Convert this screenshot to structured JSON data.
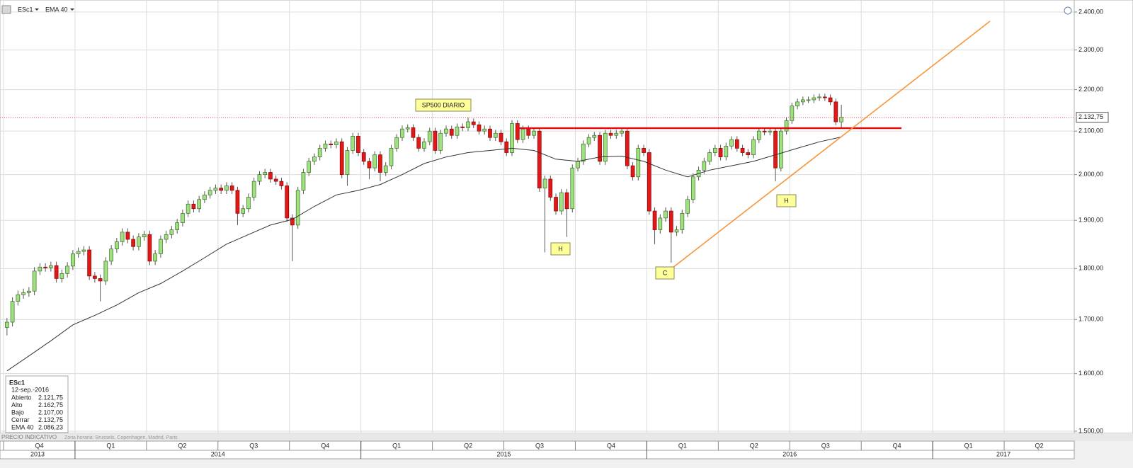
{
  "chart_data": {
    "type": "candlestick",
    "symbol": "ESc1",
    "title": "SP500 DIARIO",
    "annotations": [
      "H",
      "C",
      "H"
    ],
    "up_color": "#9fe07f",
    "down_color": "#e01818",
    "ylog": true,
    "grid": true,
    "xlim": [
      2013.7376,
      2017.495
    ],
    "ylim": [
      1496.4,
      2432.6
    ],
    "yticks": [
      {
        "value": 1500,
        "label": "1.500,00"
      },
      {
        "value": 1600,
        "label": "1.600,00"
      },
      {
        "value": 1700,
        "label": "1.700,00"
      },
      {
        "value": 1800,
        "label": "1.800,00"
      },
      {
        "value": 1900,
        "label": "1.900,00"
      },
      {
        "value": 2000,
        "label": "2.000,00"
      },
      {
        "value": 2100,
        "label": "2.100,00"
      },
      {
        "value": 2200,
        "label": "2.200,00"
      },
      {
        "value": 2300,
        "label": "2.300,00"
      },
      {
        "value": 2400,
        "label": "2.400,00"
      }
    ],
    "quarter_ticks": [
      {
        "value": 2013.75,
        "label": "Q4"
      },
      {
        "value": 2014,
        "label": "Q1"
      },
      {
        "value": 2014.25,
        "label": "Q2"
      },
      {
        "value": 2014.5,
        "label": "Q3"
      },
      {
        "value": 2014.75,
        "label": "Q4"
      },
      {
        "value": 2015,
        "label": "Q1"
      },
      {
        "value": 2015.25,
        "label": "Q2"
      },
      {
        "value": 2015.5,
        "label": "Q3"
      },
      {
        "value": 2015.75,
        "label": "Q4"
      },
      {
        "value": 2016,
        "label": "Q1"
      },
      {
        "value": 2016.25,
        "label": "Q2"
      },
      {
        "value": 2016.5,
        "label": "Q3"
      },
      {
        "value": 2016.75,
        "label": "Q4"
      },
      {
        "value": 2017,
        "label": "Q1"
      },
      {
        "value": 2017.25,
        "label": "Q2"
      }
    ],
    "year_ticks": [
      2013,
      2014,
      2015,
      2016,
      2017
    ],
    "x": [
      2013.762,
      2013.7812,
      2013.8004,
      2013.8196,
      2013.8388,
      2013.858,
      2013.8772,
      2013.8964,
      2013.9156,
      2013.9348,
      2013.954,
      2013.9732,
      2013.9924,
      2014.0116,
      2014.0308,
      2014.05,
      2014.0692,
      2014.0884,
      2014.1076,
      2014.1268,
      2014.146,
      2014.1652,
      2014.1844,
      2014.2036,
      2014.2228,
      2014.242,
      2014.2612,
      2014.2804,
      2014.2996,
      2014.3188,
      2014.338,
      2014.3572,
      2014.3764,
      2014.3956,
      2014.4148,
      2014.434,
      2014.4532,
      2014.4724,
      2014.4916,
      2014.5108,
      2014.53,
      2014.5492,
      2014.5684,
      2014.5876,
      2014.6068,
      2014.626,
      2014.6452,
      2014.6644,
      2014.6836,
      2014.7028,
      2014.722,
      2014.7412,
      2014.7604,
      2014.7796,
      2014.7988,
      2014.818,
      2014.8372,
      2014.8564,
      2014.8756,
      2014.8948,
      2014.914,
      2014.9332,
      2014.9524,
      2014.9716,
      2014.9908,
      2015.01,
      2015.0292,
      2015.0484,
      2015.0676,
      2015.0868,
      2015.106,
      2015.1252,
      2015.1444,
      2015.1636,
      2015.1828,
      2015.202,
      2015.2212,
      2015.2404,
      2015.2596,
      2015.2788,
      2015.298,
      2015.3172,
      2015.3364,
      2015.3556,
      2015.3748,
      2015.394,
      2015.4132,
      2015.4324,
      2015.4516,
      2015.4708,
      2015.49,
      2015.5092,
      2015.5284,
      2015.5476,
      2015.5668,
      2015.586,
      2015.6052,
      2015.6244,
      2015.6436,
      2015.6628,
      2015.682,
      2015.7012,
      2015.7204,
      2015.7396,
      2015.7588,
      2015.778,
      2015.7972,
      2015.8164,
      2015.8356,
      2015.8548,
      2015.874,
      2015.8932,
      2015.9124,
      2015.9316,
      2015.9508,
      2015.97,
      2015.9892,
      2016.0084,
      2016.0276,
      2016.0468,
      2016.066,
      2016.0852,
      2016.1044,
      2016.1236,
      2016.1428,
      2016.162,
      2016.1812,
      2016.2004,
      2016.2196,
      2016.2388,
      2016.258,
      2016.2772,
      2016.2964,
      2016.3156,
      2016.3348,
      2016.354,
      2016.3732,
      2016.3924,
      2016.4116,
      2016.4308,
      2016.45,
      2016.4692,
      2016.4884,
      2016.5076,
      2016.5268,
      2016.546,
      2016.5652,
      2016.5844,
      2016.6036,
      2016.6228,
      2016.642,
      2016.6612,
      2016.6804
    ],
    "open": [
      1685,
      1695,
      1735,
      1748,
      1752,
      1755,
      1795,
      1803,
      1802,
      1806,
      1780,
      1790,
      1805,
      1830,
      1835,
      1838,
      1785,
      1780,
      1775,
      1815,
      1840,
      1855,
      1875,
      1860,
      1845,
      1865,
      1870,
      1815,
      1830,
      1860,
      1870,
      1880,
      1895,
      1915,
      1935,
      1925,
      1945,
      1955,
      1965,
      1970,
      1965,
      1975,
      1965,
      1915,
      1925,
      1950,
      1985,
      2000,
      2005,
      1990,
      1985,
      1975,
      1905,
      1890,
      1965,
      2005,
      2030,
      2040,
      2060,
      2070,
      2068,
      2075,
      2000,
      2055,
      2088,
      2050,
      2030,
      2015,
      2045,
      2005,
      2020,
      2060,
      2085,
      2105,
      2108,
      2085,
      2060,
      2075,
      2100,
      2055,
      2095,
      2105,
      2090,
      2110,
      2108,
      2122,
      2115,
      2100,
      2105,
      2085,
      2095,
      2075,
      2050,
      2118,
      2080,
      2105,
      2090,
      2100,
      1970,
      1990,
      1950,
      1920,
      1960,
      1925,
      2015,
      2030,
      2070,
      2085,
      2090,
      2030,
      2095,
      2090,
      2095,
      2100,
      2020,
      1995,
      2060,
      2050,
      1920,
      1880,
      1905,
      1920,
      1875,
      1880,
      1915,
      1945,
      1995,
      2010,
      2030,
      2050,
      2060,
      2040,
      2065,
      2080,
      2060,
      2050,
      2045,
      2080,
      2100,
      2098,
      2100,
      2015,
      2100,
      2125,
      2160,
      2170,
      2175,
      2175,
      2180,
      2182,
      2180,
      2170,
      2121.75
    ],
    "high": [
      1703,
      1743,
      1756,
      1760,
      1763,
      1803,
      1811,
      1811,
      1814,
      1814,
      1798,
      1813,
      1838,
      1843,
      1846,
      1846,
      1793,
      1788,
      1823,
      1848,
      1863,
      1883,
      1883,
      1868,
      1873,
      1878,
      1878,
      1838,
      1868,
      1878,
      1888,
      1903,
      1923,
      1943,
      1943,
      1953,
      1963,
      1973,
      1978,
      1978,
      1983,
      1983,
      1973,
      1933,
      1958,
      1993,
      2008,
      2013,
      2013,
      1998,
      1993,
      1983,
      1913,
      1973,
      2013,
      2038,
      2048,
      2068,
      2078,
      2078,
      2083,
      2083,
      2063,
      2096,
      2096,
      2058,
      2038,
      2053,
      2053,
      2028,
      2068,
      2093,
      2113,
      2116,
      2116,
      2093,
      2083,
      2108,
      2108,
      2103,
      2113,
      2113,
      2118,
      2118,
      2132,
      2130,
      2123,
      2113,
      2113,
      2103,
      2103,
      2083,
      2126,
      2126,
      2113,
      2113,
      2108,
      2108,
      1998,
      1998,
      1958,
      1968,
      1968,
      2023,
      2038,
      2078,
      2093,
      2098,
      2098,
      2103,
      2103,
      2103,
      2108,
      2108,
      2028,
      2068,
      2068,
      2058,
      1928,
      1913,
      1928,
      1928,
      1888,
      1923,
      1953,
      2003,
      2018,
      2038,
      2058,
      2068,
      2068,
      2073,
      2088,
      2088,
      2068,
      2058,
      2088,
      2108,
      2108,
      2108,
      2108,
      2108,
      2133,
      2168,
      2178,
      2183,
      2183,
      2188,
      2190,
      2190,
      2188,
      2178,
      2162.75
    ],
    "low": [
      1670,
      1687,
      1727,
      1740,
      1744,
      1747,
      1787,
      1794,
      1794,
      1772,
      1772,
      1782,
      1797,
      1822,
      1827,
      1777,
      1772,
      1735,
      1767,
      1807,
      1832,
      1847,
      1852,
      1837,
      1837,
      1857,
      1807,
      1807,
      1822,
      1852,
      1862,
      1872,
      1887,
      1907,
      1917,
      1917,
      1937,
      1947,
      1957,
      1957,
      1957,
      1957,
      1890,
      1907,
      1917,
      1942,
      1977,
      1992,
      1982,
      1977,
      1967,
      1897,
      1815,
      1882,
      1957,
      1997,
      2022,
      2032,
      2052,
      2060,
      2060,
      1992,
      1975,
      2047,
      2042,
      2022,
      1990,
      2007,
      1985,
      1997,
      2012,
      2052,
      2077,
      2097,
      2077,
      2052,
      2052,
      2067,
      2047,
      2047,
      2087,
      2082,
      2082,
      2100,
      2100,
      2107,
      2092,
      2092,
      2077,
      2077,
      2067,
      2042,
      2042,
      2072,
      2072,
      2082,
      2082,
      1962,
      1833,
      1942,
      1912,
      1912,
      1865,
      1917,
      2007,
      2022,
      2062,
      2077,
      2022,
      2022,
      2082,
      2082,
      2087,
      2012,
      1987,
      1987,
      2042,
      1912,
      1850,
      1872,
      1897,
      1812,
      1867,
      1872,
      1907,
      1937,
      1987,
      2002,
      2022,
      2042,
      2032,
      2032,
      2057,
      2052,
      2042,
      2037,
      2037,
      2072,
      2090,
      2090,
      1985,
      2007,
      2092,
      2117,
      2152,
      2162,
      2167,
      2167,
      2172,
      2172,
      2162,
      2114,
      2107
    ],
    "close": [
      1695,
      1735,
      1748,
      1752,
      1755,
      1795,
      1803,
      1802,
      1806,
      1780,
      1790,
      1805,
      1830,
      1835,
      1838,
      1785,
      1780,
      1775,
      1815,
      1840,
      1855,
      1875,
      1860,
      1845,
      1865,
      1870,
      1815,
      1830,
      1860,
      1870,
      1880,
      1895,
      1915,
      1935,
      1925,
      1945,
      1955,
      1965,
      1970,
      1965,
      1975,
      1965,
      1915,
      1925,
      1950,
      1985,
      2000,
      2005,
      1990,
      1985,
      1975,
      1905,
      1890,
      1965,
      2005,
      2030,
      2040,
      2060,
      2070,
      2068,
      2075,
      2000,
      2055,
      2088,
      2050,
      2030,
      2015,
      2045,
      2005,
      2020,
      2060,
      2085,
      2105,
      2108,
      2085,
      2060,
      2075,
      2100,
      2055,
      2095,
      2105,
      2090,
      2110,
      2108,
      2122,
      2115,
      2100,
      2105,
      2085,
      2095,
      2075,
      2050,
      2118,
      2080,
      2105,
      2090,
      2100,
      1970,
      1990,
      1950,
      1920,
      1960,
      1925,
      2015,
      2030,
      2070,
      2085,
      2090,
      2030,
      2095,
      2090,
      2095,
      2100,
      2020,
      1995,
      2060,
      2050,
      1920,
      1880,
      1905,
      1920,
      1875,
      1880,
      1915,
      1945,
      1995,
      2010,
      2030,
      2050,
      2060,
      2040,
      2065,
      2080,
      2060,
      2050,
      2045,
      2080,
      2100,
      2098,
      2100,
      2015,
      2100,
      2125,
      2160,
      2170,
      2175,
      2175,
      2180,
      2182,
      2180,
      2170,
      2122,
      2132.75
    ],
    "ema": {
      "name": "EMA 40",
      "color": "#333333",
      "x": [
        2013.762,
        2013.8388,
        2013.9156,
        2013.9924,
        2014.0692,
        2014.146,
        2014.2228,
        2014.2996,
        2014.3764,
        2014.4532,
        2014.53,
        2014.6068,
        2014.6836,
        2014.7604,
        2014.8372,
        2014.914,
        2014.9908,
        2015.0676,
        2015.1444,
        2015.2212,
        2015.298,
        2015.3748,
        2015.4516,
        2015.5284,
        2015.6052,
        2015.682,
        2015.7588,
        2015.8356,
        2015.9124,
        2015.9892,
        2016.066,
        2016.1428,
        2016.2196,
        2016.2964,
        2016.3732,
        2016.45,
        2016.5268,
        2016.6036,
        2016.6804
      ],
      "values": [
        1605,
        1632,
        1660,
        1690,
        1708,
        1728,
        1752,
        1770,
        1795,
        1822,
        1850,
        1870,
        1890,
        1902,
        1930,
        1955,
        1965,
        1978,
        2000,
        2025,
        2040,
        2050,
        2055,
        2060,
        2055,
        2035,
        2030,
        2040,
        2042,
        2030,
        2010,
        1995,
        2010,
        2020,
        2030,
        2045,
        2060,
        2075,
        2086.23
      ]
    },
    "last_price_label": "2.132,75",
    "info": {
      "date": "12-sep.-2016",
      "labels": [
        "Abierto",
        "Alto",
        "Bajo",
        "Cerrar",
        "EMA 40"
      ],
      "value_labels": [
        "2.121,75",
        "2.162,75",
        "2.107,00",
        "2.132,75",
        "2.086,23"
      ]
    },
    "footer_left": "PRECIO INDICATIVO",
    "footer_zone": "Zona horaria: Brussels, Copenhagen, Madrid, Paris"
  }
}
